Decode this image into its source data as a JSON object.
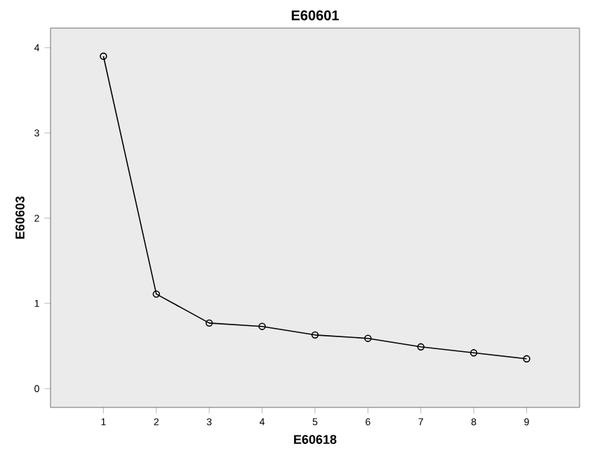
{
  "chart_data": {
    "type": "line",
    "title": "E60601",
    "xlabel": "E60618",
    "ylabel": "E60603",
    "x": [
      1,
      2,
      3,
      4,
      5,
      6,
      7,
      8,
      9
    ],
    "series": [
      {
        "color": "#000000",
        "values": [
          3.9,
          1.11,
          0.77,
          0.73,
          0.63,
          0.59,
          0.49,
          0.42,
          0.35
        ]
      }
    ],
    "xlim": [
      0,
      10
    ],
    "ylim": [
      -0.22,
      4.23
    ],
    "xticks": [
      1,
      2,
      3,
      4,
      5,
      6,
      7,
      8,
      9
    ],
    "yticks": [
      0,
      1,
      2,
      3,
      4
    ],
    "marker": "circle",
    "line_style": "solid"
  }
}
